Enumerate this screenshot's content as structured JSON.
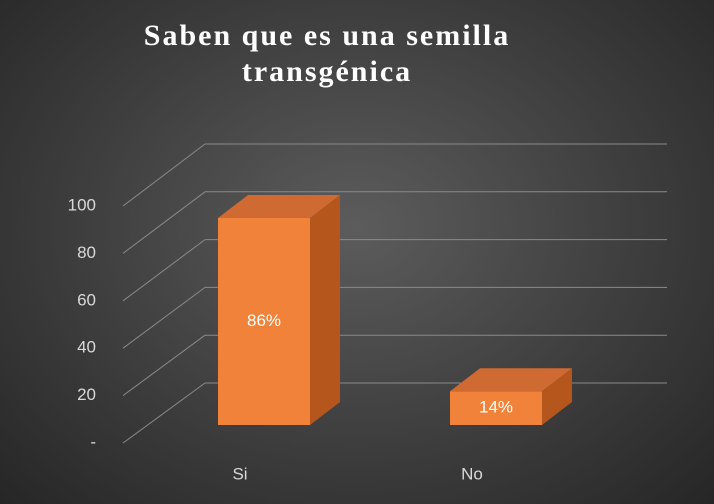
{
  "chart_data": {
    "type": "bar3d",
    "title": "Saben que es una semilla transgénica",
    "categories": [
      "Si",
      "No"
    ],
    "values": [
      86,
      14
    ],
    "value_labels": [
      "86%",
      "14%"
    ],
    "color": "#f0823a",
    "ylim": [
      0,
      100
    ],
    "yticks": [
      {
        "value": 0,
        "label": "-"
      },
      20,
      40,
      60,
      80,
      100
    ],
    "grid": true
  }
}
